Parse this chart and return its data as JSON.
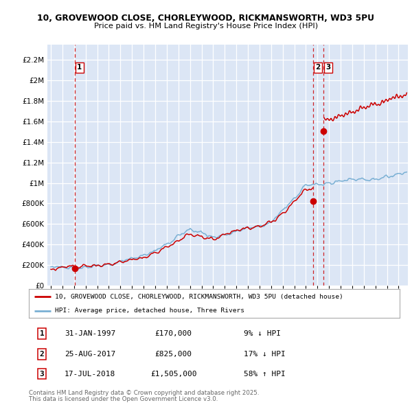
{
  "title_line1": "10, GROVEWOOD CLOSE, CHORLEYWOOD, RICKMANSWORTH, WD3 5PU",
  "title_line2": "Price paid vs. HM Land Registry's House Price Index (HPI)",
  "plot_bg_color": "#dce6f5",
  "red_line_color": "#cc0000",
  "blue_line_color": "#7ab0d4",
  "dashed_line_color": "#cc0000",
  "legend_line1": "10, GROVEWOOD CLOSE, CHORLEYWOOD, RICKMANSWORTH, WD3 5PU (detached house)",
  "legend_line2": "HPI: Average price, detached house, Three Rivers",
  "sales": [
    {
      "num": 1,
      "date": "31-JAN-1997",
      "year": 1997.08,
      "price": 170000,
      "label": "9% ↓ HPI"
    },
    {
      "num": 2,
      "date": "25-AUG-2017",
      "year": 2017.65,
      "price": 825000,
      "label": "17% ↓ HPI"
    },
    {
      "num": 3,
      "date": "17-JUL-2018",
      "year": 2018.54,
      "price": 1505000,
      "label": "58% ↑ HPI"
    }
  ],
  "footer_line1": "Contains HM Land Registry data © Crown copyright and database right 2025.",
  "footer_line2": "This data is licensed under the Open Government Licence v3.0.",
  "xmin": 1994.7,
  "xmax": 2025.8,
  "ymin": 0,
  "ymax": 2350000,
  "yticks": [
    0,
    200000,
    400000,
    600000,
    800000,
    1000000,
    1200000,
    1400000,
    1600000,
    1800000,
    2000000,
    2200000
  ]
}
